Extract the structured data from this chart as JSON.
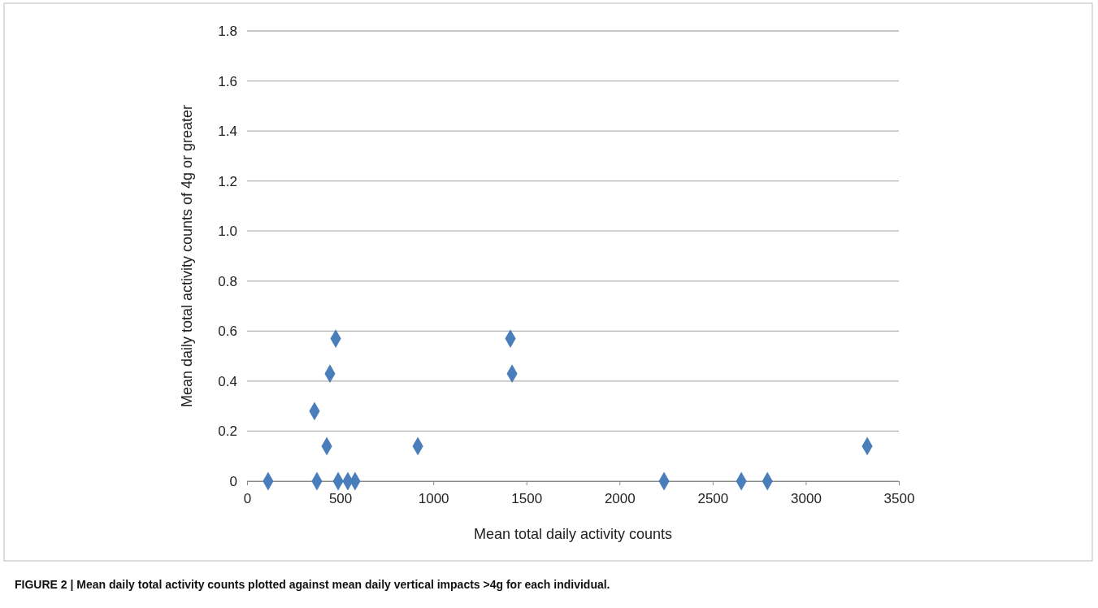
{
  "chart_data": {
    "type": "scatter",
    "xlabel": "Mean total daily activity counts",
    "ylabel": "Mean daily total activity counts of 4g or greater",
    "annotations": [
      "FIGURE 2 | Mean daily total activity counts plotted against mean daily vertical impacts >4g for each individual."
    ],
    "series": [
      {
        "color": "#4a7ebb",
        "x": [
          113,
          362,
          375,
          428,
          445,
          476,
          489,
          541,
          580,
          917,
          1414,
          1423,
          2239,
          2654,
          2794,
          3330
        ],
        "values": [
          0,
          0.28,
          0,
          0.14,
          0.43,
          0.57,
          0,
          0,
          0,
          0.14,
          0.57,
          0.43,
          0,
          0,
          0,
          0.14
        ]
      }
    ],
    "xlim": [
      0,
      3500
    ],
    "xticks": [
      0,
      500,
      1000,
      1500,
      2000,
      2500,
      3000,
      3500
    ],
    "ylim": [
      0,
      1.8
    ],
    "yticks": [
      0,
      {
        "value": 0.2,
        "label": "0.2"
      },
      {
        "value": 0.4,
        "label": "0.4"
      },
      {
        "value": 0.6,
        "label": "0.6"
      },
      {
        "value": 0.8,
        "label": "0.8"
      },
      {
        "value": 1.0,
        "label": "1.0"
      },
      {
        "value": 1.2,
        "label": "1.2"
      },
      {
        "value": 1.4,
        "label": "1.4"
      },
      {
        "value": 1.6,
        "label": "1.6"
      },
      {
        "value": 1.8,
        "label": "1.8"
      }
    ],
    "grid": "y",
    "marker": "diamond"
  }
}
